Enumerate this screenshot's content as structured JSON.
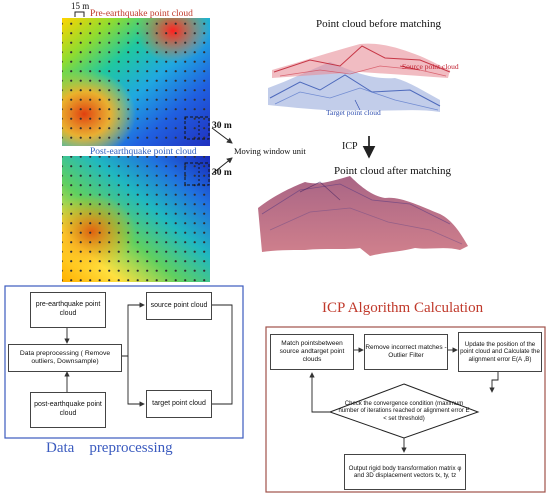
{
  "top_left": {
    "scale_label": "15 m",
    "pre_title": "Pre-earthquake point cloud",
    "post_title": "Post-earthquake point cloud",
    "dim_30_a": "30 m",
    "dim_30_b": "30 m",
    "dim_30_c": "30 m",
    "moving_window_label": "Moving window unit"
  },
  "top_right": {
    "before_title": "Point cloud before matching",
    "source_label": "Source point cloud",
    "target_label": "Target point cloud",
    "icp_label": "ICP",
    "after_title": "Point cloud after matching"
  },
  "left_panel": {
    "caption": "Data    preprocessing",
    "pre_box": "pre-earthquake point cloud",
    "preprocess_box": "Data preprocessing ( Remove outliers, Downsample)",
    "post_box": "post-earthquake point cloud",
    "source_box": "source point cloud",
    "target_box": "target point cloud"
  },
  "right_panel": {
    "title": "ICP Algorithm Calculation",
    "match_box": "Match pointsbetween source andtarget point clouds",
    "filter_box": "Remove incorrect matches - Outlier Filter",
    "update_box": "Update the position of the point cloud and Calculate the alignment error E(A ,B)",
    "check_diamond": "Check the convergence condition (maximum number of iterations reached or alignment error E < set threshold)",
    "output_box": "Output rigid body transformation matrix φ and 3D displacement vectors tx, ty, tz"
  },
  "colors": {
    "left_border": "#3b5bbf",
    "right_border": "#a0524a",
    "title_red": "#c0392b",
    "caption_blue": "#3b5bbf",
    "cloud_red": "#c02030",
    "cloud_blue": "#3050b0"
  }
}
